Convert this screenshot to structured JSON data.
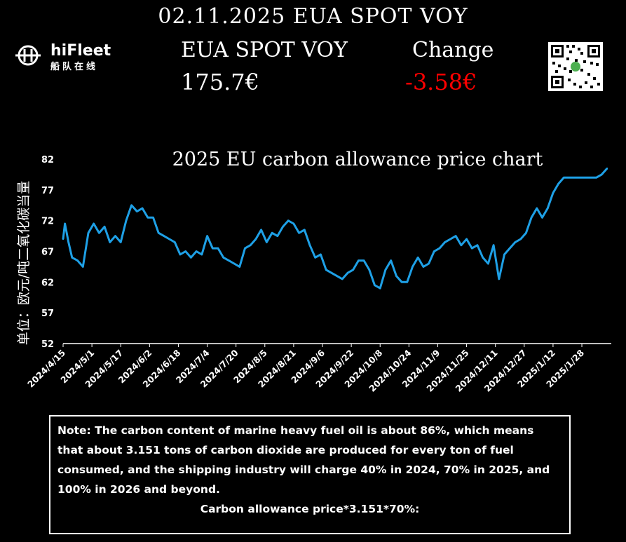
{
  "header": {
    "title": "02.11.2025 EUA SPOT VOY",
    "logo_text": "hiFleet",
    "logo_subtext": "船队在线"
  },
  "quote": {
    "label": "EUA SPOT VOY",
    "price": "175.7€",
    "change_label": "Change",
    "change_value": "-3.58€",
    "change_color": "#ff0000"
  },
  "chart_data": {
    "type": "line",
    "title": "2025 EU carbon allowance price chart",
    "ylabel": "单位：欧元/吨二氧化碳当量",
    "xlabel": "",
    "ylim": [
      52,
      82
    ],
    "yticks": [
      52,
      57,
      62,
      67,
      72,
      77,
      82
    ],
    "xticks": [
      "2024/4/15",
      "2024/5/1",
      "2024/5/17",
      "2024/6/2",
      "2024/6/18",
      "2024/7/4",
      "2024/7/20",
      "2024/8/5",
      "2024/8/21",
      "2024/9/6",
      "2024/9/22",
      "2024/10/8",
      "2024/10/24",
      "2024/11/9",
      "2024/11/25",
      "2024/12/11",
      "2024/12/27",
      "2025/1/12",
      "2025/1/28"
    ],
    "line_color": "#1ea0e6",
    "grid": false,
    "series": [
      {
        "x": [
          "2024/4/15",
          "2024/4/16",
          "2024/4/18",
          "2024/4/20",
          "2024/4/23",
          "2024/4/26",
          "2024/4/29",
          "2024/5/2",
          "2024/5/5",
          "2024/5/8",
          "2024/5/11",
          "2024/5/14",
          "2024/5/17",
          "2024/5/20",
          "2024/5/23",
          "2024/5/26",
          "2024/5/29",
          "2024/6/1",
          "2024/6/4",
          "2024/6/7",
          "2024/6/10",
          "2024/6/13",
          "2024/6/16",
          "2024/6/19",
          "2024/6/22",
          "2024/6/25",
          "2024/6/28",
          "2024/7/1",
          "2024/7/4",
          "2024/7/7",
          "2024/7/10",
          "2024/7/13",
          "2024/7/16",
          "2024/7/19",
          "2024/7/22",
          "2024/7/25",
          "2024/7/28",
          "2024/7/31",
          "2024/8/3",
          "2024/8/6",
          "2024/8/9",
          "2024/8/12",
          "2024/8/15",
          "2024/8/18",
          "2024/8/21",
          "2024/8/24",
          "2024/8/27",
          "2024/8/30",
          "2024/9/2",
          "2024/9/5",
          "2024/9/8",
          "2024/9/11",
          "2024/9/14",
          "2024/9/17",
          "2024/9/20",
          "2024/9/23",
          "2024/9/26",
          "2024/9/29",
          "2024/10/2",
          "2024/10/5",
          "2024/10/8",
          "2024/10/11",
          "2024/10/14",
          "2024/10/17",
          "2024/10/20",
          "2024/10/23",
          "2024/10/26",
          "2024/10/29",
          "2024/11/1",
          "2024/11/4",
          "2024/11/7",
          "2024/11/10",
          "2024/11/13",
          "2024/11/16",
          "2024/11/19",
          "2024/11/22",
          "2024/11/25",
          "2024/11/28",
          "2024/12/1",
          "2024/12/4",
          "2024/12/7",
          "2024/12/10",
          "2024/12/13",
          "2024/12/16",
          "2024/12/19",
          "2024/12/22",
          "2024/12/25",
          "2024/12/28",
          "2024/12/31",
          "2025/1/3",
          "2025/1/6",
          "2025/1/9",
          "2025/1/12",
          "2025/1/15",
          "2025/1/18",
          "2025/1/21",
          "2025/1/24",
          "2025/1/27",
          "2025/1/30",
          "2025/2/2",
          "2025/2/5",
          "2025/2/8",
          "2025/2/11"
        ],
        "values": [
          69.0,
          71.5,
          68.5,
          66.0,
          65.5,
          64.5,
          70.0,
          71.5,
          70.0,
          71.0,
          68.5,
          69.5,
          68.5,
          72.0,
          74.5,
          73.5,
          74.0,
          72.5,
          72.5,
          70.0,
          69.5,
          69.0,
          68.5,
          66.5,
          67.0,
          66.0,
          67.0,
          66.5,
          69.5,
          67.5,
          67.5,
          66.0,
          65.5,
          65.0,
          64.5,
          67.5,
          68.0,
          69.0,
          70.5,
          68.5,
          70.0,
          69.5,
          71.0,
          72.0,
          71.5,
          70.0,
          70.5,
          68.0,
          66.0,
          66.5,
          64.0,
          63.5,
          63.0,
          62.5,
          63.5,
          64.0,
          65.5,
          65.5,
          64.0,
          61.5,
          61.0,
          64.0,
          65.5,
          63.0,
          62.0,
          62.0,
          64.5,
          66.0,
          64.5,
          65.0,
          67.0,
          67.5,
          68.5,
          69.0,
          69.5,
          68.0,
          69.0,
          67.5,
          68.0,
          66.0,
          65.0,
          68.0,
          62.5,
          66.5,
          67.5,
          68.5,
          69.0,
          70.0,
          72.5,
          74.0,
          72.5,
          74.0,
          76.5,
          78.0,
          79.0,
          79.0,
          79.0,
          79.0,
          79.0,
          79.0,
          79.0,
          79.5,
          80.5
        ]
      }
    ]
  },
  "note": {
    "text": "Note: The carbon content of marine heavy fuel oil is about 86%, which means that about 3.151 tons of carbon dioxide are produced for every ton of fuel consumed, and the shipping industry will charge 40% in 2024, 70% in 2025, and 100% in 2026 and beyond.",
    "formula": "Carbon allowance price*3.151*70%:"
  }
}
